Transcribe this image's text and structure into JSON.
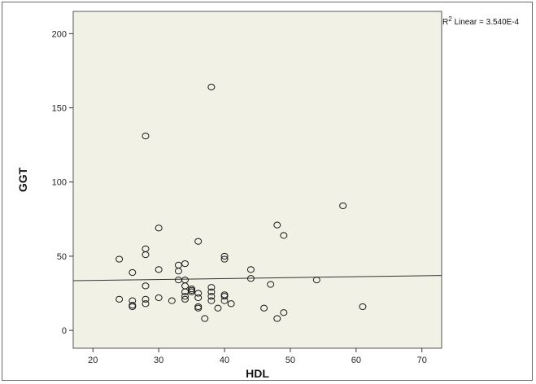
{
  "chart_data": {
    "type": "scatter",
    "xlabel": "HDL",
    "ylabel": "GGT",
    "xlim": [
      17,
      73
    ],
    "ylim": [
      -12,
      215
    ],
    "xticks": [
      20,
      30,
      40,
      50,
      60,
      70
    ],
    "yticks": [
      0,
      50,
      100,
      150,
      200
    ],
    "grid": false,
    "annotation": {
      "label": "R",
      "superscript": "2",
      "text": " Linear = 3.540E-4"
    },
    "fit_line": {
      "x": [
        17,
        73
      ],
      "y": [
        33.5,
        37
      ]
    },
    "colors": {
      "plot_background": "#f2f1e6",
      "marker_stroke": "#1a1a1a",
      "line": "#333333"
    },
    "points": [
      {
        "x": 24,
        "y": 48
      },
      {
        "x": 24,
        "y": 21
      },
      {
        "x": 26,
        "y": 39
      },
      {
        "x": 26,
        "y": 20
      },
      {
        "x": 26,
        "y": 17
      },
      {
        "x": 26,
        "y": 16
      },
      {
        "x": 28,
        "y": 131
      },
      {
        "x": 28,
        "y": 55
      },
      {
        "x": 28,
        "y": 51
      },
      {
        "x": 28,
        "y": 30
      },
      {
        "x": 28,
        "y": 21
      },
      {
        "x": 28,
        "y": 18
      },
      {
        "x": 30,
        "y": 69
      },
      {
        "x": 30,
        "y": 41
      },
      {
        "x": 30,
        "y": 22
      },
      {
        "x": 32,
        "y": 20
      },
      {
        "x": 33,
        "y": 44
      },
      {
        "x": 33,
        "y": 40
      },
      {
        "x": 33,
        "y": 34
      },
      {
        "x": 34,
        "y": 45
      },
      {
        "x": 34,
        "y": 34
      },
      {
        "x": 34,
        "y": 30
      },
      {
        "x": 34,
        "y": 26
      },
      {
        "x": 34,
        "y": 23
      },
      {
        "x": 34,
        "y": 21
      },
      {
        "x": 35,
        "y": 28
      },
      {
        "x": 35,
        "y": 27
      },
      {
        "x": 35,
        "y": 26
      },
      {
        "x": 36,
        "y": 60
      },
      {
        "x": 36,
        "y": 25
      },
      {
        "x": 36,
        "y": 22
      },
      {
        "x": 36,
        "y": 16
      },
      {
        "x": 36,
        "y": 15
      },
      {
        "x": 37,
        "y": 8
      },
      {
        "x": 38,
        "y": 164
      },
      {
        "x": 38,
        "y": 29
      },
      {
        "x": 38,
        "y": 26
      },
      {
        "x": 38,
        "y": 23
      },
      {
        "x": 38,
        "y": 20
      },
      {
        "x": 39,
        "y": 15
      },
      {
        "x": 40,
        "y": 50
      },
      {
        "x": 40,
        "y": 48
      },
      {
        "x": 40,
        "y": 24
      },
      {
        "x": 40,
        "y": 23
      },
      {
        "x": 40,
        "y": 20
      },
      {
        "x": 41,
        "y": 18
      },
      {
        "x": 44,
        "y": 41
      },
      {
        "x": 44,
        "y": 35
      },
      {
        "x": 46,
        "y": 15
      },
      {
        "x": 47,
        "y": 31
      },
      {
        "x": 48,
        "y": 71
      },
      {
        "x": 48,
        "y": 8
      },
      {
        "x": 49,
        "y": 64
      },
      {
        "x": 49,
        "y": 12
      },
      {
        "x": 54,
        "y": 34
      },
      {
        "x": 58,
        "y": 84
      },
      {
        "x": 61,
        "y": 16
      }
    ]
  }
}
